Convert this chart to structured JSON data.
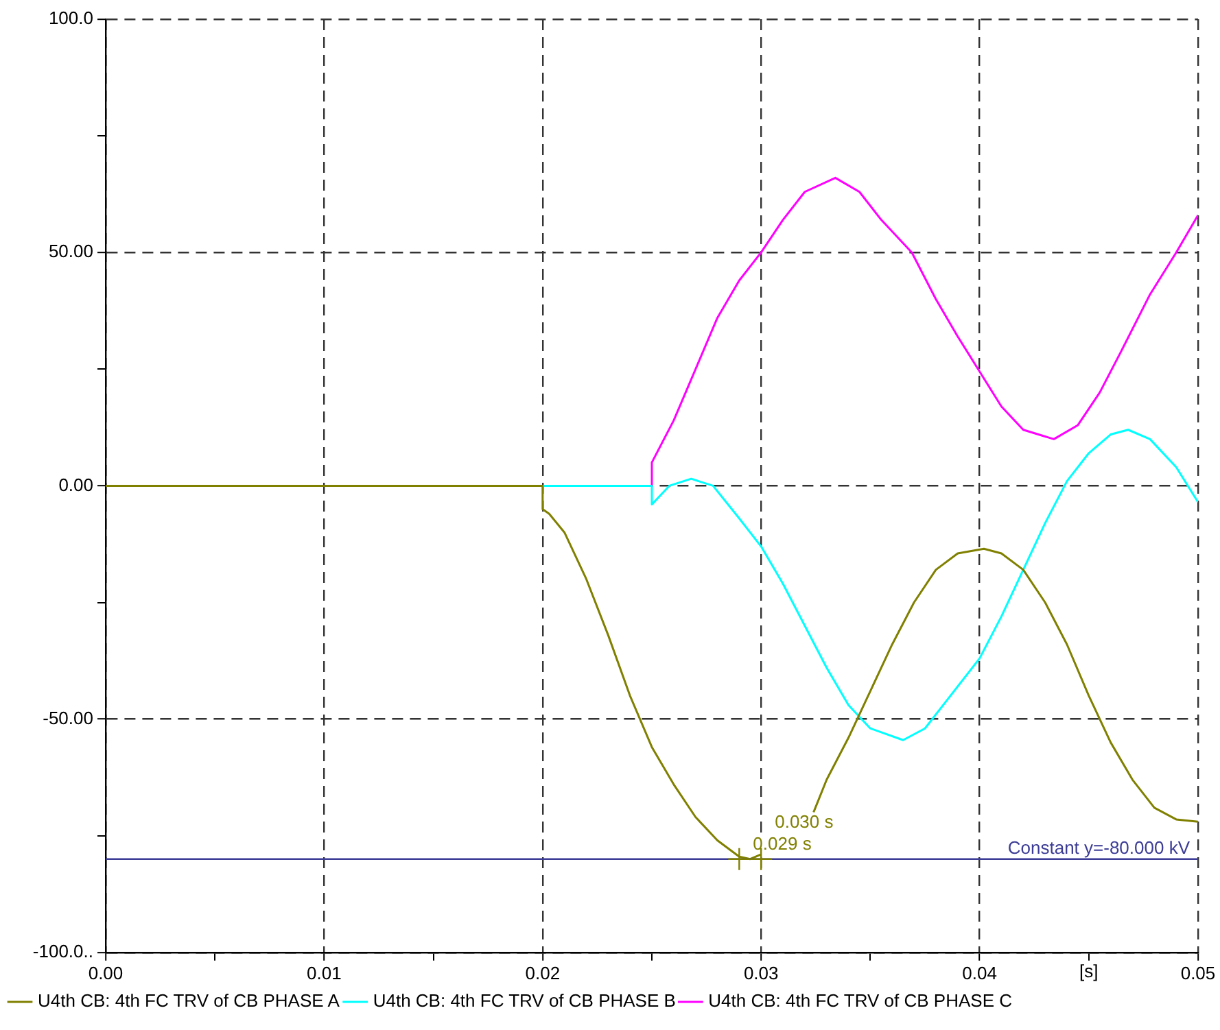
{
  "chart_data": {
    "type": "line",
    "xlabel": "[s]",
    "xlim": [
      0,
      0.05
    ],
    "xticks": [
      {
        "value": 0,
        "label": "0.00"
      },
      {
        "value": 0.005,
        "label": null
      },
      {
        "value": 0.01,
        "label": "0.01"
      },
      {
        "value": 0.015,
        "label": null
      },
      {
        "value": 0.02,
        "label": "0.02"
      },
      {
        "value": 0.025,
        "label": null
      },
      {
        "value": 0.03,
        "label": "0.03"
      },
      {
        "value": 0.035,
        "label": null
      },
      {
        "value": 0.04,
        "label": "0.04"
      },
      {
        "value": 0.045,
        "label": null
      },
      {
        "value": 0.05,
        "label": "0.05"
      }
    ],
    "ylim": [
      -100,
      100
    ],
    "yticks": [
      {
        "value": -100,
        "label": "-100.0.."
      },
      {
        "value": -75,
        "label": null
      },
      {
        "value": -50,
        "label": "-50.00"
      },
      {
        "value": -25,
        "label": null
      },
      {
        "value": 0,
        "label": "0.00"
      },
      {
        "value": 25,
        "label": null
      },
      {
        "value": 50,
        "label": "50.00"
      },
      {
        "value": 75,
        "label": null
      },
      {
        "value": 100,
        "label": "100.0"
      }
    ],
    "grid": true,
    "legend": "bottom",
    "series": [
      {
        "name": "U4th CB: 4th FC TRV of CB PHASE A",
        "color": "#808000",
        "x": [
          0,
          0.02,
          0.02,
          0.0203,
          0.021,
          0.022,
          0.023,
          0.024,
          0.025,
          0.026,
          0.027,
          0.028,
          0.029,
          0.0295,
          0.03,
          0.031,
          0.0324,
          0.033,
          0.034,
          0.035,
          0.036,
          0.037,
          0.038,
          0.039,
          0.0402,
          0.041,
          0.042,
          0.043,
          0.044,
          0.045,
          0.046,
          0.047,
          0.048,
          0.049,
          0.05
        ],
        "values": [
          0,
          0,
          -5,
          -6,
          -10,
          -20,
          -32,
          -45,
          -56,
          -64,
          -71,
          -76,
          -79.5,
          -80,
          -79,
          null,
          -70,
          -63,
          -54,
          -44,
          -34,
          -25,
          -18,
          -14.5,
          -13.5,
          -14.5,
          -18,
          -25,
          -34,
          -45,
          -55,
          -63,
          -69,
          -71.5,
          -72
        ]
      },
      {
        "name": "U4th CB: 4th FC TRV of CB PHASE B",
        "color": "#00ffff",
        "x": [
          0,
          0.025,
          0.025,
          0.0258,
          0.0268,
          0.0278,
          0.029,
          0.03,
          0.031,
          0.032,
          0.033,
          0.034,
          0.035,
          0.0365,
          0.0375,
          0.0385,
          0.04,
          0.041,
          0.042,
          0.043,
          0.044,
          0.045,
          0.046,
          0.0468,
          0.0478,
          0.049,
          0.05
        ],
        "values": [
          0,
          0,
          -4,
          0,
          1.5,
          0,
          -7,
          -13,
          -21,
          -30,
          -39,
          -47,
          -52,
          -54.5,
          -52,
          -46,
          -37,
          -28,
          -18,
          -8,
          1,
          7,
          11,
          12,
          10,
          4,
          -3.5
        ]
      },
      {
        "name": "U4th CB: 4th FC TRV of CB PHASE C",
        "color": "#ff00ff",
        "x": [
          0,
          0.025,
          0.025,
          0.026,
          0.027,
          0.028,
          0.029,
          0.03,
          0.031,
          0.032,
          0.0334,
          0.0345,
          0.0355,
          0.0369,
          0.038,
          0.039,
          0.04,
          0.041,
          0.042,
          0.0434,
          0.0445,
          0.0455,
          0.0465,
          0.0478,
          0.049,
          0.05
        ],
        "values": [
          0,
          0,
          5,
          14,
          25,
          36,
          44,
          50,
          57,
          63,
          66,
          63,
          57,
          50,
          40,
          32,
          24.5,
          17,
          12,
          10,
          13,
          20,
          29,
          41,
          50,
          58
        ]
      }
    ],
    "ref_lines": [
      {
        "axis": "y",
        "value": -80,
        "label": "Constant y=-80.000 kV",
        "color": "#3c3c96"
      }
    ],
    "annotations": [
      {
        "text": "0.029 s",
        "x": 0.029,
        "y": -80
      },
      {
        "text": "0.030 s",
        "x": 0.03,
        "y": -80
      }
    ]
  }
}
